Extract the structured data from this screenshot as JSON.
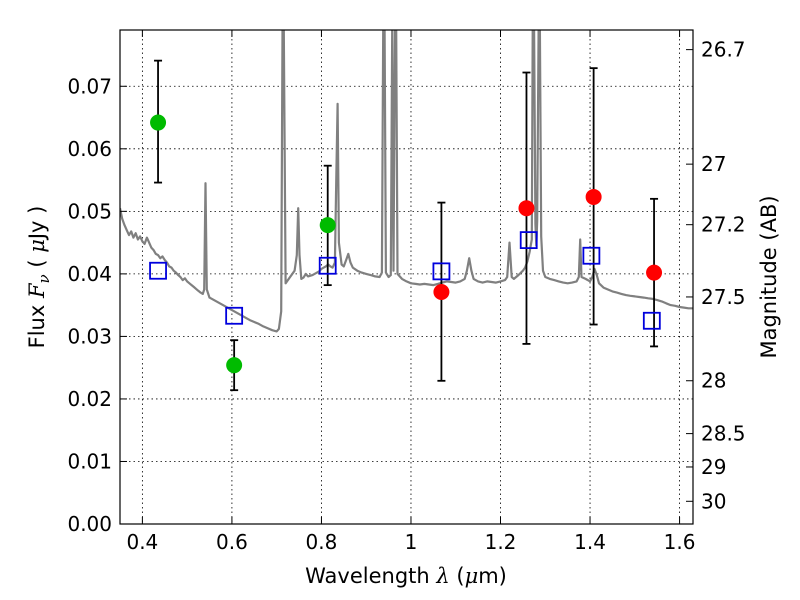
{
  "chart_data": {
    "type": "scatter",
    "xlabel": {
      "prefix": "Wavelength  ",
      "lambda": "λ",
      "unit_open": " (",
      "mu": "μ",
      "unit_rest": "m)"
    },
    "ylabel": {
      "prefix": "Flux  ",
      "F": "F",
      "nu": "ν",
      "unit_open": "  ( ",
      "mu": "μ",
      "unit_rest": "Jy )"
    },
    "y2label": "Magnitude (AB)",
    "xlim": [
      0.35,
      1.63
    ],
    "ylim": [
      0.0,
      0.079
    ],
    "grid": true,
    "x_ticks": [
      {
        "value": 0.4,
        "label": "0.4"
      },
      {
        "value": 0.6,
        "label": "0.6"
      },
      {
        "value": 0.8,
        "label": "0.8"
      },
      {
        "value": 1.0,
        "label": "1"
      },
      {
        "value": 1.2,
        "label": "1.2"
      },
      {
        "value": 1.4,
        "label": "1.4"
      },
      {
        "value": 1.6,
        "label": "1.6"
      }
    ],
    "y_ticks": [
      {
        "value": 0.0,
        "label": "0.00"
      },
      {
        "value": 0.01,
        "label": "0.01"
      },
      {
        "value": 0.02,
        "label": "0.02"
      },
      {
        "value": 0.03,
        "label": "0.03"
      },
      {
        "value": 0.04,
        "label": "0.04"
      },
      {
        "value": 0.05,
        "label": "0.05"
      },
      {
        "value": 0.06,
        "label": "0.06"
      },
      {
        "value": 0.07,
        "label": "0.07"
      }
    ],
    "y2_ticks": [
      {
        "mag": 26.7,
        "label": "26.7"
      },
      {
        "mag": 27,
        "label": "27"
      },
      {
        "mag": 27.2,
        "label": "27.2"
      },
      {
        "mag": 27.5,
        "label": "27.5"
      },
      {
        "mag": 28,
        "label": "28"
      },
      {
        "mag": 28.5,
        "label": "28.5"
      },
      {
        "mag": 29,
        "label": "29"
      },
      {
        "mag": 30,
        "label": "30"
      }
    ],
    "series": [
      {
        "role": "model",
        "style": "line",
        "color": "#808080",
        "points": [
          [
            0.35,
            0.0505
          ],
          [
            0.355,
            0.0488
          ],
          [
            0.36,
            0.0478
          ],
          [
            0.365,
            0.047
          ],
          [
            0.37,
            0.0462
          ],
          [
            0.375,
            0.0468
          ],
          [
            0.38,
            0.0458
          ],
          [
            0.385,
            0.0465
          ],
          [
            0.39,
            0.0455
          ],
          [
            0.395,
            0.046
          ],
          [
            0.4,
            0.0452
          ],
          [
            0.405,
            0.0448
          ],
          [
            0.41,
            0.0458
          ],
          [
            0.415,
            0.045
          ],
          [
            0.42,
            0.0442
          ],
          [
            0.425,
            0.0438
          ],
          [
            0.43,
            0.0432
          ],
          [
            0.435,
            0.043
          ],
          [
            0.44,
            0.0425
          ],
          [
            0.445,
            0.0428
          ],
          [
            0.45,
            0.0422
          ],
          [
            0.455,
            0.0418
          ],
          [
            0.46,
            0.0412
          ],
          [
            0.465,
            0.041
          ],
          [
            0.47,
            0.0405
          ],
          [
            0.475,
            0.0402
          ],
          [
            0.48,
            0.0398
          ],
          [
            0.485,
            0.0395
          ],
          [
            0.49,
            0.039
          ],
          [
            0.495,
            0.0393
          ],
          [
            0.5,
            0.0388
          ],
          [
            0.505,
            0.0385
          ],
          [
            0.51,
            0.0382
          ],
          [
            0.515,
            0.0379
          ],
          [
            0.52,
            0.0376
          ],
          [
            0.525,
            0.0373
          ],
          [
            0.53,
            0.037
          ],
          [
            0.535,
            0.0368
          ],
          [
            0.538,
            0.0375
          ],
          [
            0.541,
            0.0545
          ],
          [
            0.544,
            0.0375
          ],
          [
            0.55,
            0.0362
          ],
          [
            0.56,
            0.0358
          ],
          [
            0.57,
            0.0354
          ],
          [
            0.58,
            0.035
          ],
          [
            0.59,
            0.0346
          ],
          [
            0.6,
            0.0342
          ],
          [
            0.61,
            0.0338
          ],
          [
            0.62,
            0.0334
          ],
          [
            0.63,
            0.033
          ],
          [
            0.64,
            0.0326
          ],
          [
            0.65,
            0.0323
          ],
          [
            0.66,
            0.032
          ],
          [
            0.67,
            0.0316
          ],
          [
            0.68,
            0.0313
          ],
          [
            0.69,
            0.031
          ],
          [
            0.7,
            0.0308
          ],
          [
            0.705,
            0.0312
          ],
          [
            0.71,
            0.034
          ],
          [
            0.713,
            0.079
          ],
          [
            0.716,
            0.079
          ],
          [
            0.72,
            0.0385
          ],
          [
            0.73,
            0.0395
          ],
          [
            0.74,
            0.0405
          ],
          [
            0.745,
            0.043
          ],
          [
            0.748,
            0.0505
          ],
          [
            0.751,
            0.043
          ],
          [
            0.755,
            0.0392
          ],
          [
            0.76,
            0.0394
          ],
          [
            0.765,
            0.04
          ],
          [
            0.77,
            0.0396
          ],
          [
            0.78,
            0.0398
          ],
          [
            0.79,
            0.0402
          ],
          [
            0.795,
            0.0404
          ],
          [
            0.8,
            0.0408
          ],
          [
            0.805,
            0.041
          ],
          [
            0.81,
            0.0412
          ],
          [
            0.815,
            0.0415
          ],
          [
            0.82,
            0.0412
          ],
          [
            0.825,
            0.041
          ],
          [
            0.83,
            0.0418
          ],
          [
            0.833,
            0.0545
          ],
          [
            0.836,
            0.0672
          ],
          [
            0.839,
            0.045
          ],
          [
            0.845,
            0.0415
          ],
          [
            0.85,
            0.0412
          ],
          [
            0.855,
            0.0422
          ],
          [
            0.86,
            0.0432
          ],
          [
            0.865,
            0.0418
          ],
          [
            0.87,
            0.041
          ],
          [
            0.88,
            0.0405
          ],
          [
            0.89,
            0.0402
          ],
          [
            0.9,
            0.04
          ],
          [
            0.91,
            0.0398
          ],
          [
            0.92,
            0.0396
          ],
          [
            0.93,
            0.0395
          ],
          [
            0.935,
            0.0402
          ],
          [
            0.938,
            0.079
          ],
          [
            0.941,
            0.079
          ],
          [
            0.944,
            0.0402
          ],
          [
            0.95,
            0.0395
          ],
          [
            0.955,
            0.0398
          ],
          [
            0.958,
            0.079
          ],
          [
            0.961,
            0.0405
          ],
          [
            0.964,
            0.079
          ],
          [
            0.967,
            0.079
          ],
          [
            0.97,
            0.04
          ],
          [
            0.98,
            0.0392
          ],
          [
            0.99,
            0.0388
          ],
          [
            1.0,
            0.0385
          ],
          [
            1.01,
            0.0384
          ],
          [
            1.02,
            0.0383
          ],
          [
            1.03,
            0.0384
          ],
          [
            1.04,
            0.0383
          ],
          [
            1.05,
            0.0382
          ],
          [
            1.06,
            0.0384
          ],
          [
            1.07,
            0.0386
          ],
          [
            1.08,
            0.0388
          ],
          [
            1.09,
            0.0387
          ],
          [
            1.1,
            0.0386
          ],
          [
            1.11,
            0.0388
          ],
          [
            1.12,
            0.0392
          ],
          [
            1.125,
            0.0405
          ],
          [
            1.13,
            0.0425
          ],
          [
            1.135,
            0.0405
          ],
          [
            1.14,
            0.0392
          ],
          [
            1.15,
            0.0388
          ],
          [
            1.16,
            0.0386
          ],
          [
            1.17,
            0.0388
          ],
          [
            1.18,
            0.0387
          ],
          [
            1.19,
            0.0386
          ],
          [
            1.2,
            0.0388
          ],
          [
            1.21,
            0.039
          ],
          [
            1.215,
            0.0395
          ],
          [
            1.22,
            0.045
          ],
          [
            1.225,
            0.0395
          ],
          [
            1.23,
            0.0392
          ],
          [
            1.24,
            0.0398
          ],
          [
            1.25,
            0.0405
          ],
          [
            1.255,
            0.041
          ],
          [
            1.26,
            0.042
          ],
          [
            1.265,
            0.0435
          ],
          [
            1.27,
            0.0455
          ],
          [
            1.272,
            0.079
          ],
          [
            1.275,
            0.079
          ],
          [
            1.278,
            0.048
          ],
          [
            1.28,
            0.0445
          ],
          [
            1.282,
            0.0485
          ],
          [
            1.285,
            0.079
          ],
          [
            1.288,
            0.079
          ],
          [
            1.291,
            0.046
          ],
          [
            1.295,
            0.0405
          ],
          [
            1.3,
            0.0395
          ],
          [
            1.31,
            0.0392
          ],
          [
            1.32,
            0.039
          ],
          [
            1.33,
            0.0388
          ],
          [
            1.34,
            0.0386
          ],
          [
            1.35,
            0.0385
          ],
          [
            1.36,
            0.0386
          ],
          [
            1.37,
            0.0388
          ],
          [
            1.375,
            0.0395
          ],
          [
            1.378,
            0.0455
          ],
          [
            1.381,
            0.0395
          ],
          [
            1.39,
            0.0392
          ],
          [
            1.395,
            0.039
          ],
          [
            1.4,
            0.0388
          ],
          [
            1.405,
            0.0395
          ],
          [
            1.41,
            0.0408
          ],
          [
            1.415,
            0.0398
          ],
          [
            1.42,
            0.0385
          ],
          [
            1.43,
            0.0378
          ],
          [
            1.44,
            0.0375
          ],
          [
            1.45,
            0.0372
          ],
          [
            1.46,
            0.037
          ],
          [
            1.47,
            0.0368
          ],
          [
            1.48,
            0.0366
          ],
          [
            1.49,
            0.0365
          ],
          [
            1.5,
            0.0364
          ],
          [
            1.51,
            0.0363
          ],
          [
            1.52,
            0.0362
          ],
          [
            1.53,
            0.0361
          ],
          [
            1.54,
            0.036
          ],
          [
            1.55,
            0.0358
          ],
          [
            1.56,
            0.0356
          ],
          [
            1.57,
            0.0353
          ],
          [
            1.58,
            0.035
          ],
          [
            1.59,
            0.0349
          ],
          [
            1.6,
            0.0347
          ],
          [
            1.61,
            0.0346
          ],
          [
            1.62,
            0.0345
          ],
          [
            1.63,
            0.0345
          ]
        ]
      },
      {
        "role": "observed-optical",
        "style": "marker-circle",
        "color": "#00bb00",
        "points": [
          {
            "x": 0.435,
            "y": 0.0642,
            "yerr_low": 0.0546,
            "yerr_high": 0.0741
          },
          {
            "x": 0.605,
            "y": 0.0254,
            "yerr_low": 0.0214,
            "yerr_high": 0.0294
          },
          {
            "x": 0.814,
            "y": 0.0478,
            "yerr_low": 0.0382,
            "yerr_high": 0.0573
          }
        ]
      },
      {
        "role": "observed-infrared",
        "style": "marker-circle",
        "color": "#ff0000",
        "points": [
          {
            "x": 1.068,
            "y": 0.0371,
            "yerr_low": 0.0229,
            "yerr_high": 0.0514
          },
          {
            "x": 1.258,
            "y": 0.0505,
            "yerr_low": 0.0288,
            "yerr_high": 0.0722
          },
          {
            "x": 1.408,
            "y": 0.0523,
            "yerr_low": 0.0319,
            "yerr_high": 0.0729
          },
          {
            "x": 1.543,
            "y": 0.0402,
            "yerr_low": 0.0284,
            "yerr_high": 0.052
          }
        ]
      },
      {
        "role": "model-photometry",
        "style": "marker-square-open",
        "color": "#0000dd",
        "points": [
          {
            "x": 0.435,
            "y": 0.0405
          },
          {
            "x": 0.605,
            "y": 0.0333
          },
          {
            "x": 0.814,
            "y": 0.0413
          },
          {
            "x": 1.068,
            "y": 0.0404
          },
          {
            "x": 1.263,
            "y": 0.0454
          },
          {
            "x": 1.403,
            "y": 0.0429
          },
          {
            "x": 1.538,
            "y": 0.0325
          }
        ]
      }
    ]
  }
}
